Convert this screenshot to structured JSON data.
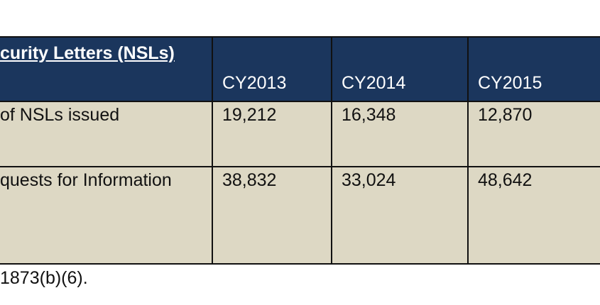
{
  "table": {
    "title": "curity Letters (NSLs)",
    "columns": [
      "CY2013",
      "CY2014",
      "CY2015"
    ],
    "rows": [
      [
        "of NSLs issued",
        "19,212",
        "16,348",
        "12,870"
      ],
      [
        "quests for Information",
        "38,832",
        "33,024",
        "48,642"
      ]
    ]
  },
  "footnote": "1873(b)(6)."
}
